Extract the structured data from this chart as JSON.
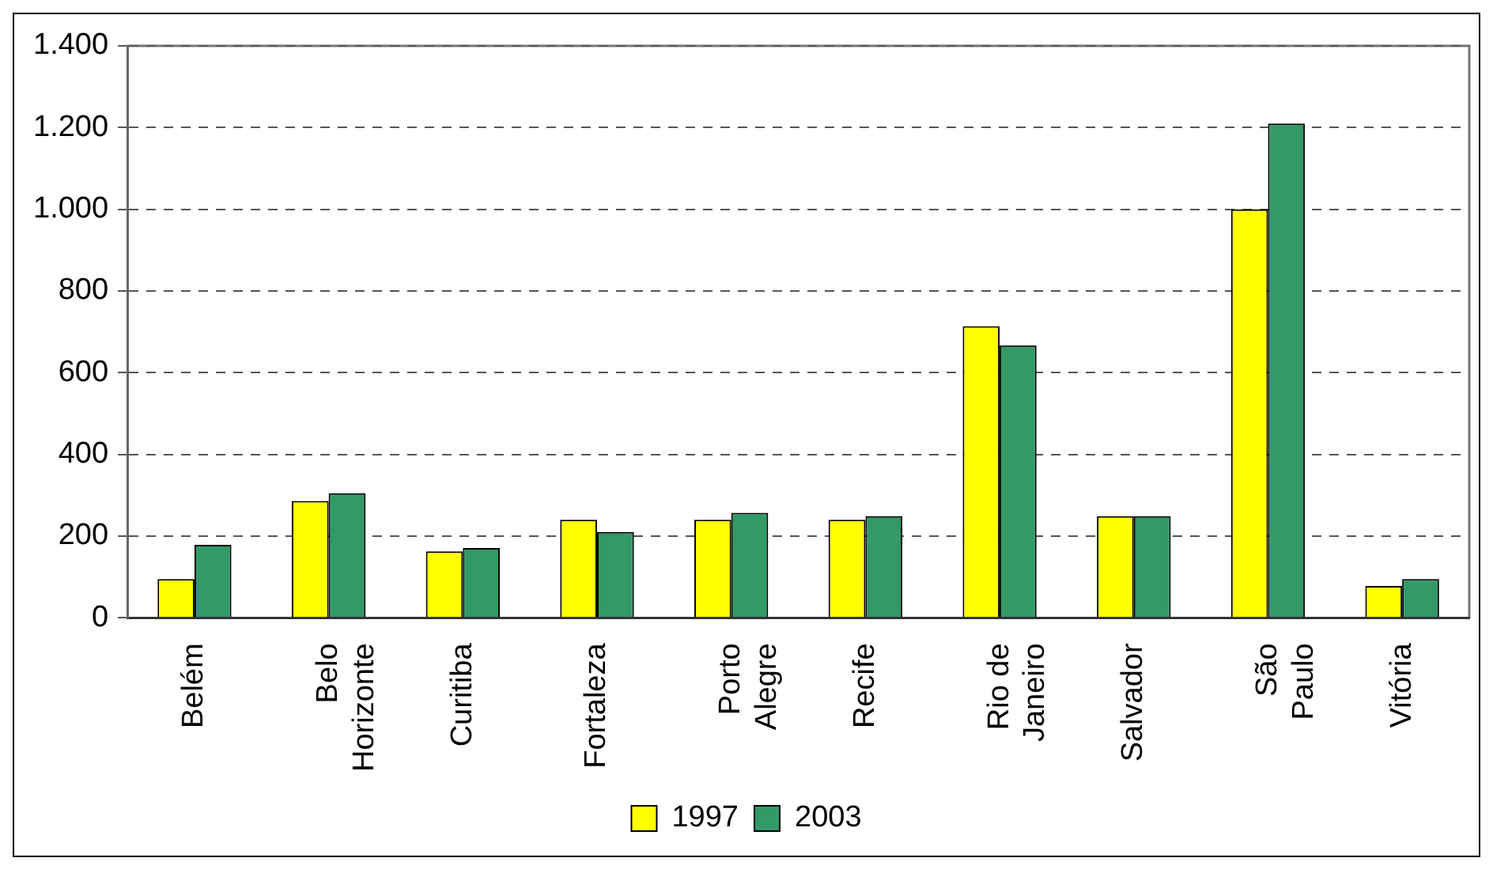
{
  "chart_data": {
    "type": "bar",
    "categories": [
      "Belém",
      "Belo Horizonte",
      "Curitiba",
      "Fortaleza",
      "Porto Alegre",
      "Recife",
      "Rio de Janeiro",
      "Salvador",
      "São Paulo",
      "Vitória"
    ],
    "series": [
      {
        "name": "1997",
        "color": "#ffff00",
        "values": [
          95,
          286,
          163,
          240,
          240,
          240,
          714,
          249,
          1000,
          78
        ]
      },
      {
        "name": "2003",
        "color": "#339966",
        "values": [
          179,
          305,
          171,
          210,
          257,
          249,
          667,
          249,
          1210,
          95
        ]
      }
    ],
    "ylim": [
      0,
      1400
    ],
    "yticks": [
      0,
      200,
      400,
      600,
      800,
      {
        "value": 1000,
        "label": "1.000"
      },
      {
        "value": 1200,
        "label": "1.200"
      },
      {
        "value": 1400,
        "label": "1.400"
      }
    ],
    "grid": "y",
    "legend": "bottom"
  }
}
